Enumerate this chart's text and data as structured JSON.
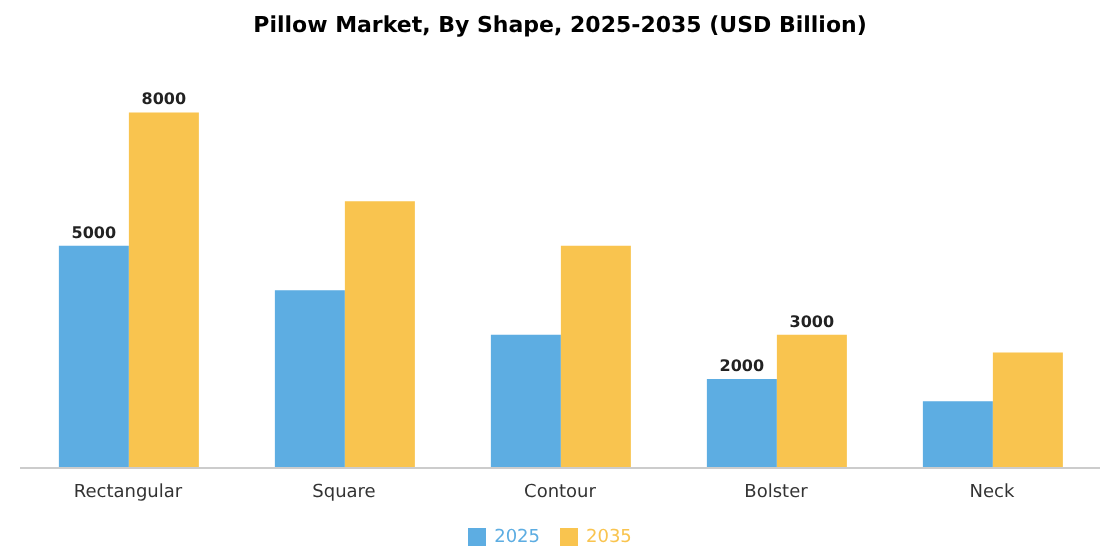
{
  "chart_data": {
    "type": "bar",
    "title": "Pillow Market, By Shape, 2025-2035 (USD Billion)",
    "categories": [
      "Rectangular",
      "Square",
      "Contour",
      "Bolster",
      "Neck"
    ],
    "series": [
      {
        "name": "2025",
        "color": "#5dade2",
        "values": [
          5000,
          4000,
          3000,
          2000,
          1500
        ],
        "value_labels": [
          "5000",
          null,
          null,
          "2000",
          null
        ]
      },
      {
        "name": "2035",
        "color": "#f9c44f",
        "values": [
          8000,
          6000,
          5000,
          3000,
          2600
        ],
        "value_labels": [
          "8000",
          null,
          null,
          "3000",
          null
        ]
      }
    ],
    "legend": "bottom",
    "grid": false
  }
}
